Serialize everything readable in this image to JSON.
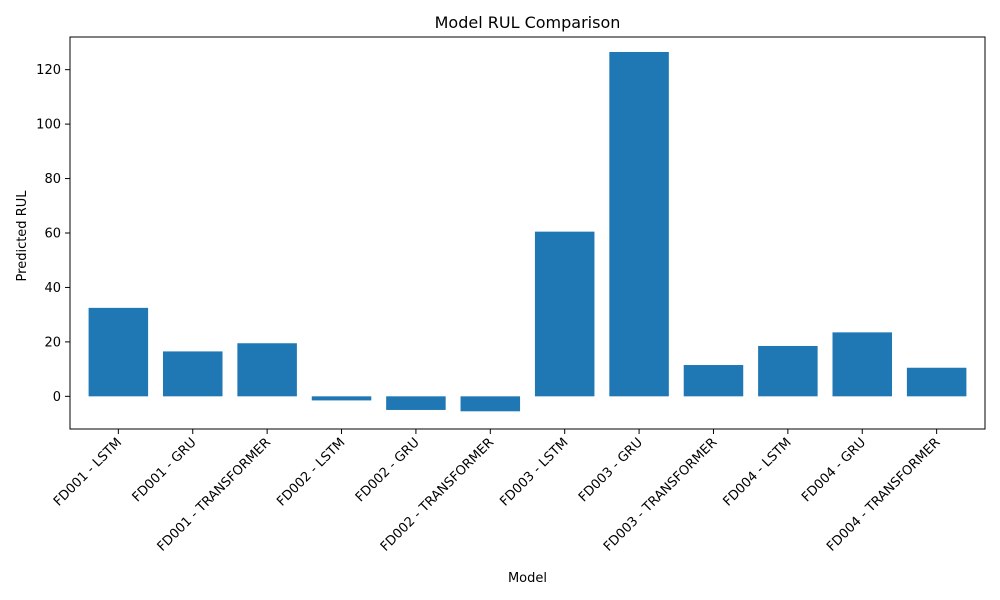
{
  "chart_data": {
    "type": "bar",
    "title": "Model RUL Comparison",
    "xlabel": "Model",
    "ylabel": "Predicted RUL",
    "categories": [
      "FD001 - LSTM",
      "FD001 - GRU",
      "FD001 - TRANSFORMER",
      "FD002 - LSTM",
      "FD002 - GRU",
      "FD002 - TRANSFORMER",
      "FD003 - LSTM",
      "FD003 - GRU",
      "FD003 - TRANSFORMER",
      "FD004 - LSTM",
      "FD004 - GRU",
      "FD004 - TRANSFORMER"
    ],
    "values": [
      32.5,
      16.5,
      19.5,
      -1.5,
      -5.0,
      -5.5,
      60.5,
      126.5,
      11.5,
      18.5,
      23.5,
      10.5
    ],
    "ylim": [
      -12,
      132
    ],
    "yticks": [
      0,
      20,
      40,
      60,
      80,
      100,
      120
    ],
    "grid": false,
    "legend": "none",
    "bar_color": "#1f77b4"
  }
}
